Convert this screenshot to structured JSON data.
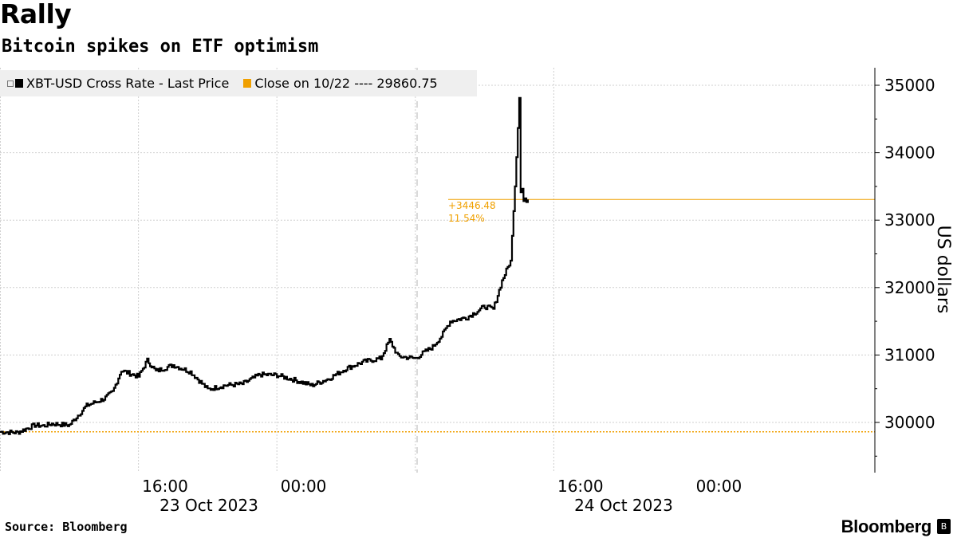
{
  "header": {
    "title": "Rally",
    "subtitle": "Bitcoin spikes on ETF optimism"
  },
  "legend": {
    "series_label": "XBT-USD Cross Rate - Last Price",
    "close_label": "Close on 10/22 ---- 29860.75"
  },
  "footer": {
    "source": "Source: Bloomberg",
    "brand": "Bloomberg"
  },
  "colors": {
    "series": "#000000",
    "close": "#f0a000",
    "grid": "#cfcfcf"
  },
  "chart_data": {
    "type": "line",
    "title": "Rally",
    "subtitle": "Bitcoin spikes on ETF optimism",
    "ylabel": "US dollars",
    "ylim": [
      29350,
      35300
    ],
    "yticks": [
      30000,
      31000,
      32000,
      33000,
      34000,
      35000
    ],
    "xlim_hours_from_oct23_0600": [
      0,
      36
    ],
    "x_tick_labels": [
      "16:00",
      "00:00",
      "16:00",
      "00:00"
    ],
    "x_date_labels": [
      "23 Oct 2023",
      "24 Oct 2023"
    ],
    "reference_line": {
      "label": "Close on 10/22",
      "value": 29860.75
    },
    "last_value_line": {
      "value": 33307.23
    },
    "annotations": [
      "+3446.48",
      "11.54%"
    ],
    "series": [
      {
        "name": "XBT-USD Cross Rate - Last Price",
        "x": [
          "2023-10-23 06:00",
          "2023-10-23 07:00",
          "2023-10-23 08:00",
          "2023-10-23 08:30",
          "2023-10-23 09:00",
          "2023-10-23 10:00",
          "2023-10-23 11:00",
          "2023-10-23 12:00",
          "2023-10-23 12:30",
          "2023-10-23 13:00",
          "2023-10-23 14:00",
          "2023-10-23 14:30",
          "2023-10-23 15:00",
          "2023-10-23 16:00",
          "2023-10-23 17:00",
          "2023-10-23 18:00",
          "2023-10-23 19:00",
          "2023-10-23 20:00",
          "2023-10-23 20:30",
          "2023-10-23 21:00",
          "2023-10-23 22:00",
          "2023-10-23 23:00",
          "2023-10-24 00:00",
          "2023-10-24 01:00",
          "2023-10-24 02:00",
          "2023-10-24 03:00",
          "2023-10-24 04:00",
          "2023-10-24 04:30",
          "2023-10-24 05:00",
          "2023-10-24 06:00",
          "2023-10-24 06:30",
          "2023-10-24 07:00",
          "2023-10-24 07:30",
          "2023-10-24 08:00",
          "2023-10-24 09:00",
          "2023-10-24 10:00",
          "2023-10-24 10:30",
          "2023-10-24 11:00",
          "2023-10-24 11:30",
          "2023-10-24 11:45",
          "2023-10-24 12:00",
          "2023-10-24 12:05",
          "2023-10-24 12:10",
          "2023-10-24 12:15",
          "2023-10-24 12:20",
          "2023-10-24 12:25",
          "2023-10-24 12:30"
        ],
        "values": [
          29860,
          29850,
          29960,
          29950,
          29980,
          29960,
          30250,
          30350,
          30450,
          30770,
          30680,
          30920,
          30760,
          30850,
          30750,
          30490,
          30550,
          30570,
          30640,
          30710,
          30700,
          30630,
          30550,
          30650,
          30800,
          30900,
          30950,
          31220,
          30980,
          30950,
          31040,
          31120,
          31280,
          31500,
          31560,
          31720,
          31680,
          32100,
          32400,
          33500,
          34800,
          33400,
          33500,
          33300,
          33350,
          33280,
          33307
        ]
      }
    ]
  }
}
